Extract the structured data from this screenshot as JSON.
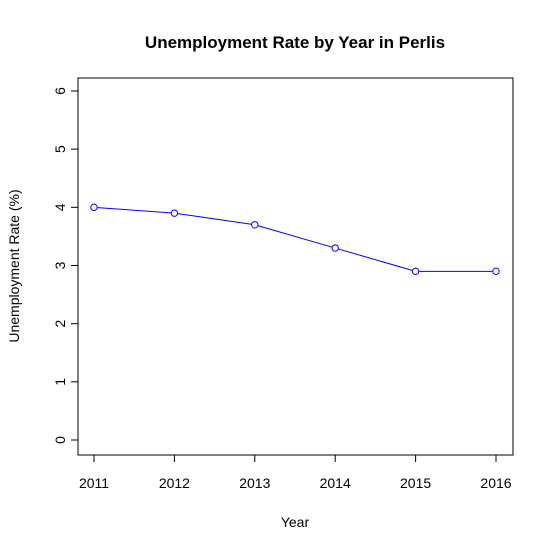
{
  "chart_data": {
    "type": "line",
    "title": "Unemployment Rate by Year in Perlis",
    "xlabel": "Year",
    "ylabel": "Unemployment Rate (%)",
    "x": [
      2011,
      2012,
      2013,
      2014,
      2015,
      2016
    ],
    "series": [
      {
        "values": [
          4.0,
          3.9,
          3.7,
          3.3,
          2.9,
          2.9
        ]
      }
    ],
    "x_ticks": [
      "2011",
      "2012",
      "2013",
      "2014",
      "2015",
      "2016"
    ],
    "y_ticks": [
      "0",
      "1",
      "2",
      "3",
      "4",
      "5",
      "6"
    ],
    "ylim": [
      0,
      6
    ],
    "xlim": [
      2011,
      2016
    ],
    "grid": false,
    "colors": {
      "line": "#0000ff",
      "axis": "#000000"
    }
  }
}
